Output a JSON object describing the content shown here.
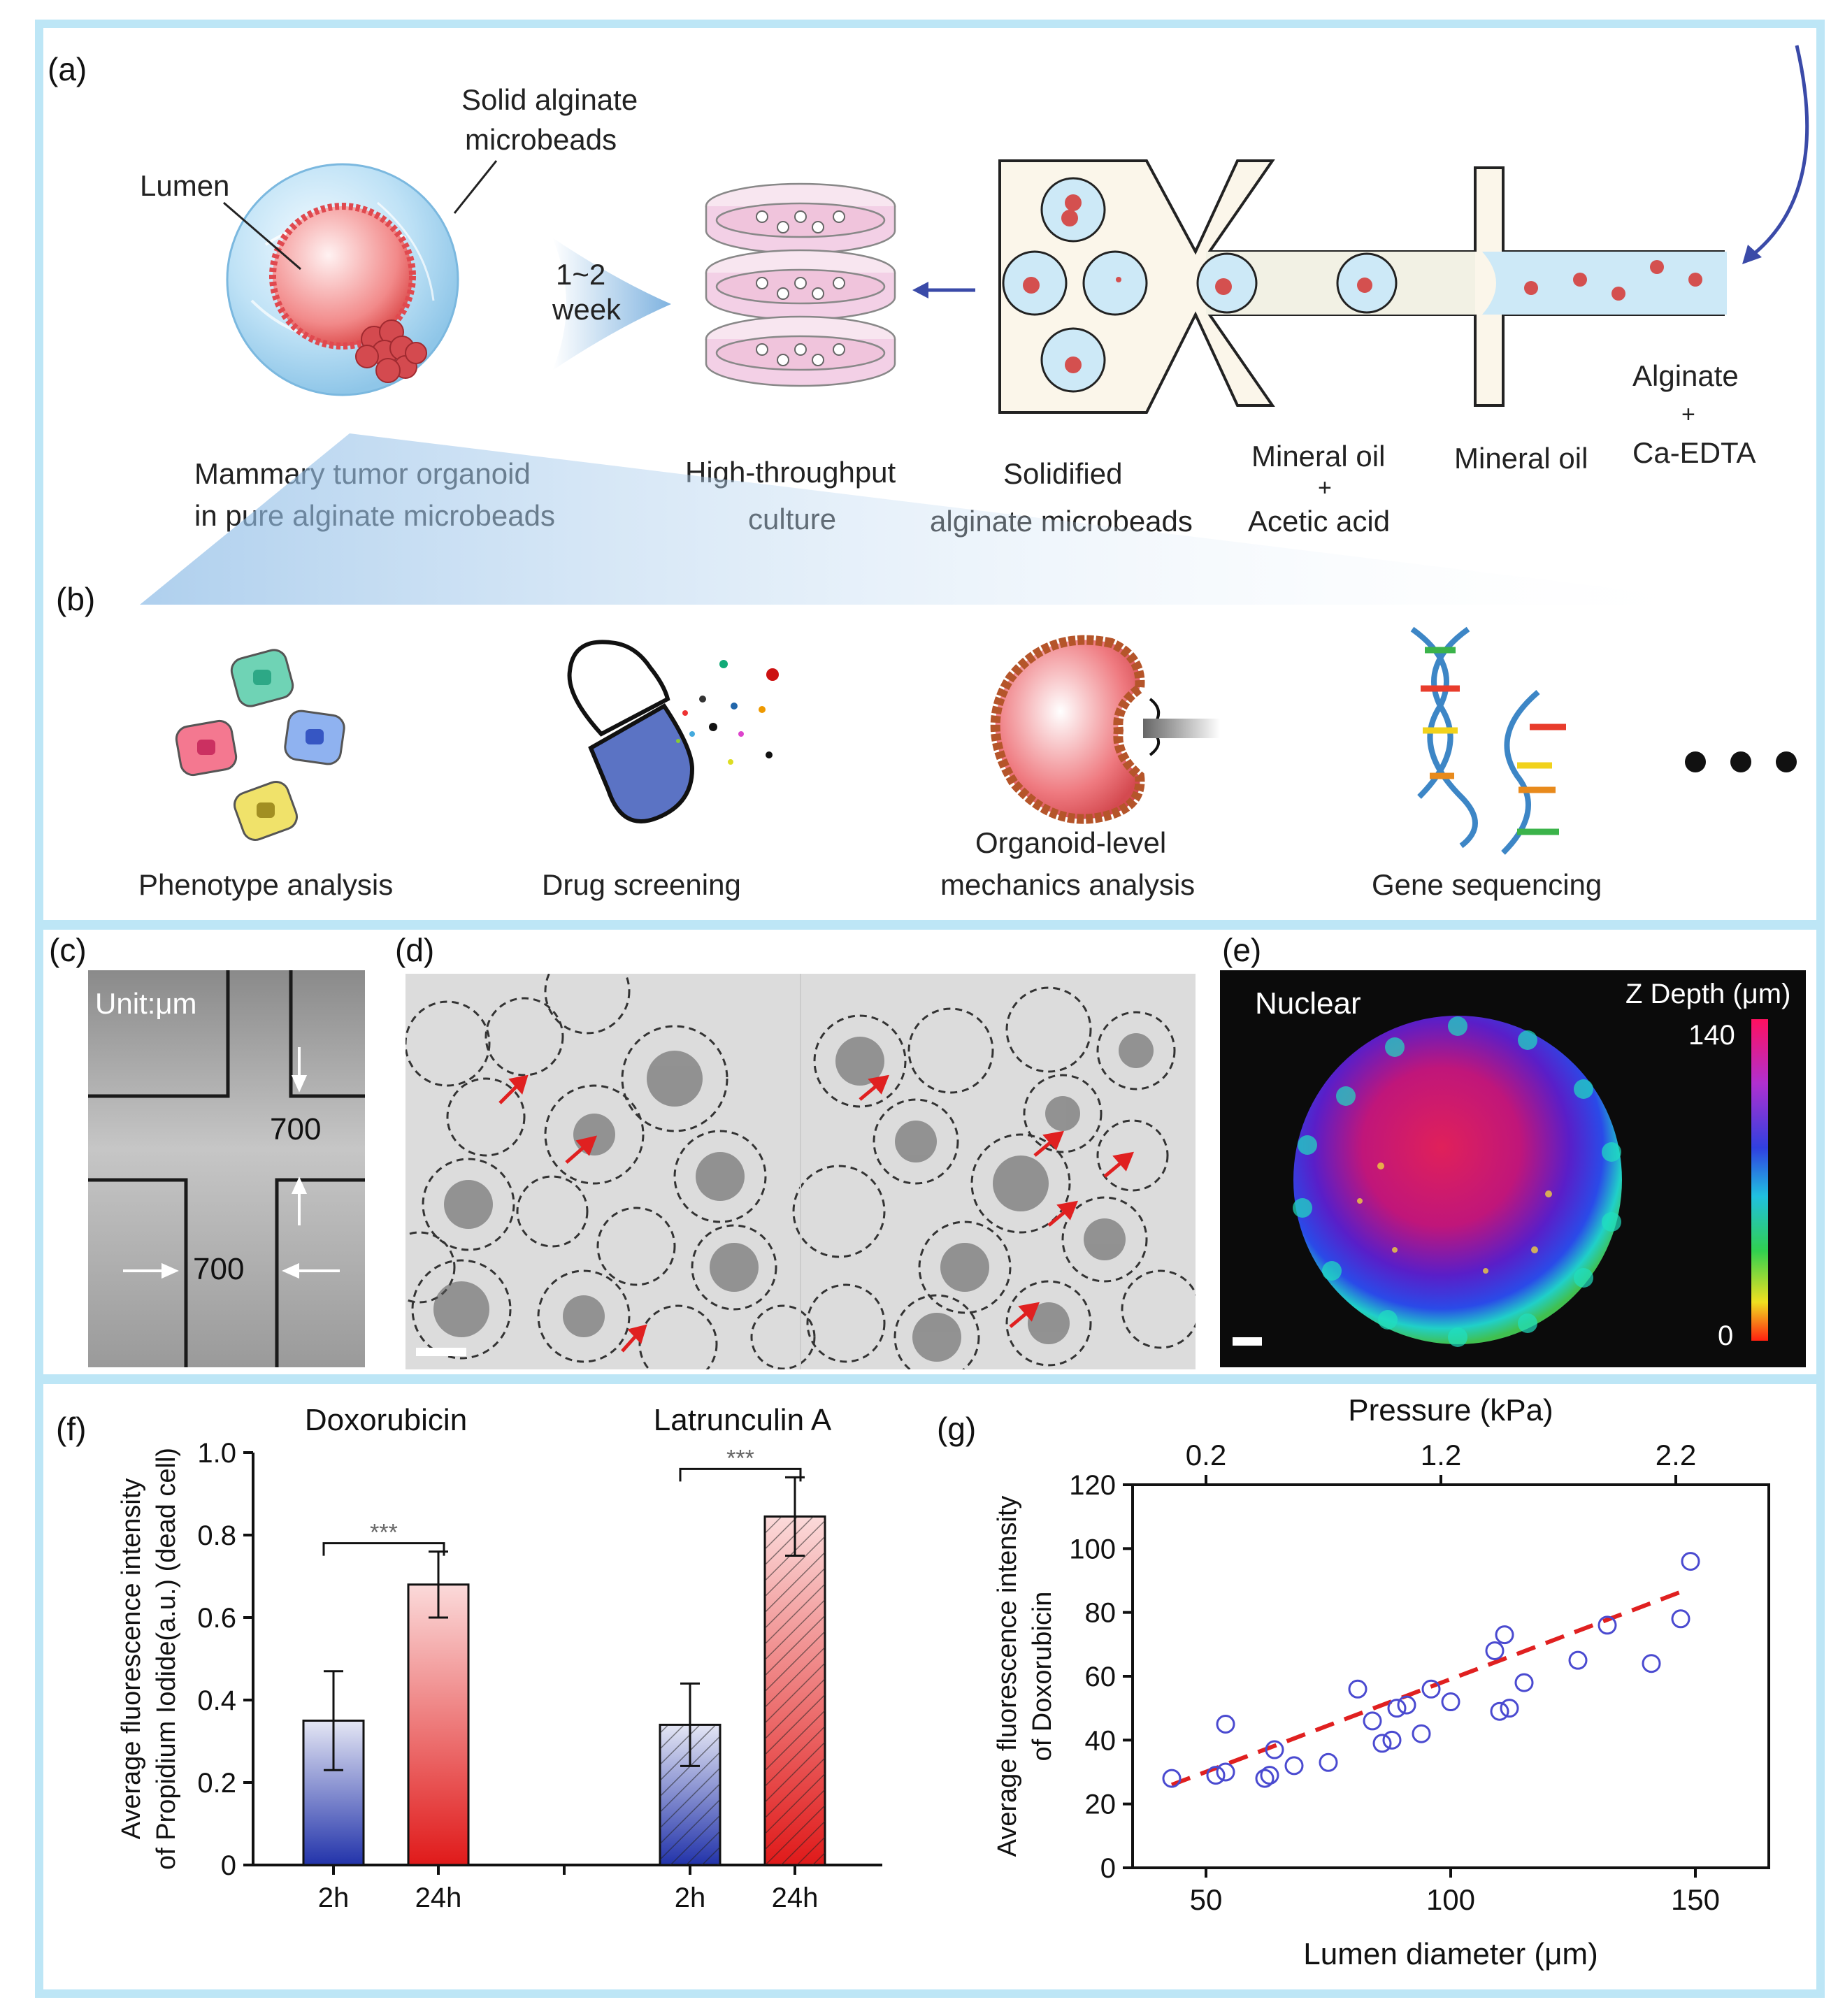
{
  "panel_a": {
    "label": "(a)",
    "lumen": "Lumen",
    "solid_alginate_line1": "Solid alginate",
    "solid_alginate_line2": "microbeads",
    "time_line1": "1~2",
    "time_line2": "week",
    "organoid_line1": "Mammary tumor organoid",
    "organoid_line2": "in pure alginate microbeads",
    "htp_line1": "High-throughput",
    "htp_line2": "culture",
    "solidified_line1": "Solidified",
    "solidified_line2": "alginate microbeads",
    "mineral_acetic_line1": "Mineral oil",
    "mineral_acetic_plus": "+",
    "mineral_acetic_line2": "Acetic acid",
    "mineral_oil": "Mineral oil",
    "alginate_line1": "Alginate",
    "alginate_plus": "+",
    "alginate_line2": "Ca-EDTA"
  },
  "panel_b": {
    "label": "(b)",
    "items": [
      "Phenotype analysis",
      "Drug  screening",
      "Organoid-level",
      "mechanics analysis",
      "Gene sequencing"
    ]
  },
  "panel_c": {
    "label": "(c)",
    "unit": "Unit:μm",
    "width_top": "700",
    "width_bottom": "700"
  },
  "panel_d": {
    "label": "(d)"
  },
  "panel_e": {
    "label": "(e)",
    "title": "Nuclear",
    "colorbar_title": "Z Depth (μm)",
    "colorbar_max": "140",
    "colorbar_min": "0"
  },
  "colors": {
    "frame": "#bde6f6",
    "blue_bar": "#2233aa",
    "red_bar": "#e01a1a",
    "marker": "#4a4ad0",
    "fit": "#e02020"
  },
  "chart_data": [
    {
      "type": "bar",
      "panel_label": "(f)",
      "ylabel_line1": "Average fluorescence intensity",
      "ylabel_line2": "of Propidium Iodide(a.u.) (dead cell)",
      "ylim": [
        0,
        1.0
      ],
      "yticks": [
        "0",
        "0.2",
        "0.4",
        "0.6",
        "0.8",
        "1.0"
      ],
      "significance": "***",
      "groups": [
        {
          "name": "Doxorubicin",
          "bars": [
            {
              "label": "2h",
              "value": 0.35,
              "error": 0.12,
              "hatched": false
            },
            {
              "label": "24h",
              "value": 0.68,
              "error": 0.08,
              "hatched": false
            }
          ]
        },
        {
          "name": "Latrunculin A",
          "bars": [
            {
              "label": "2h",
              "value": 0.34,
              "error": 0.1,
              "hatched": true
            },
            {
              "label": "24h",
              "value": 0.845,
              "error": 0.095,
              "hatched": true
            }
          ]
        }
      ]
    },
    {
      "type": "scatter",
      "panel_label": "(g)",
      "xlabel": "Lumen diameter (μm)",
      "x2label": "Pressure (kPa)",
      "ylabel_line1": "Average fluorescence intensity",
      "ylabel_line2": "of Doxorubicin",
      "xlim": [
        35,
        165
      ],
      "ylim": [
        0,
        120
      ],
      "xticks": [
        50,
        100,
        150
      ],
      "yticks": [
        0,
        20,
        40,
        60,
        80,
        100,
        120
      ],
      "x2ticks": [
        {
          "at": 50,
          "label": "0.2"
        },
        {
          "at": 98,
          "label": "1.2"
        },
        {
          "at": 146,
          "label": "2.2"
        }
      ],
      "points": [
        [
          43,
          28
        ],
        [
          52,
          29
        ],
        [
          54,
          30
        ],
        [
          54,
          45
        ],
        [
          62,
          28
        ],
        [
          63,
          29
        ],
        [
          64,
          37
        ],
        [
          68,
          32
        ],
        [
          75,
          33
        ],
        [
          81,
          56
        ],
        [
          84,
          46
        ],
        [
          86,
          39
        ],
        [
          88,
          40
        ],
        [
          89,
          50
        ],
        [
          91,
          51
        ],
        [
          94,
          42
        ],
        [
          96,
          56
        ],
        [
          100,
          52
        ],
        [
          109,
          68
        ],
        [
          110,
          49
        ],
        [
          111,
          73
        ],
        [
          112,
          50
        ],
        [
          115,
          58
        ],
        [
          126,
          65
        ],
        [
          132,
          76
        ],
        [
          141,
          64
        ],
        [
          147,
          78
        ],
        [
          149,
          96
        ]
      ],
      "fit": {
        "x": [
          43,
          148
        ],
        "y": [
          26,
          87
        ]
      }
    }
  ]
}
